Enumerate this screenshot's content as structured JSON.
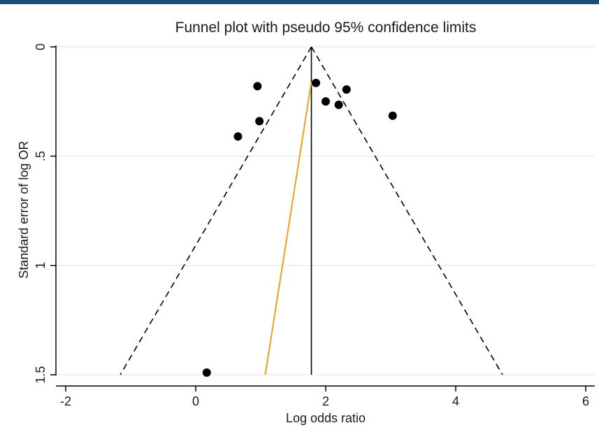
{
  "chart_data": {
    "type": "scatter",
    "title": "Funnel plot with pseudo 95% confidence limits",
    "xlabel": "Log odds ratio",
    "ylabel": "Standard error of log OR",
    "xlim": [
      -2,
      6
    ],
    "ylim": [
      0,
      1.5
    ],
    "y_reversed": true,
    "xticks": [
      -2,
      0,
      2,
      4,
      6
    ],
    "xtick_labels": [
      "-2",
      "0",
      "2",
      "4",
      "6"
    ],
    "yticks": [
      0,
      0.5,
      1,
      1.5
    ],
    "ytick_labels": [
      "0",
      ".5",
      "1",
      "1.5"
    ],
    "grid": "horizontal",
    "points": [
      {
        "x": 0.95,
        "y": 0.18
      },
      {
        "x": 1.85,
        "y": 0.165
      },
      {
        "x": 2.32,
        "y": 0.195
      },
      {
        "x": 2.0,
        "y": 0.25
      },
      {
        "x": 2.2,
        "y": 0.265
      },
      {
        "x": 3.03,
        "y": 0.315
      },
      {
        "x": 0.98,
        "y": 0.34
      },
      {
        "x": 0.65,
        "y": 0.41
      },
      {
        "x": 0.17,
        "y": 1.49
      }
    ],
    "pooled_estimate": 1.78,
    "funnel": {
      "apex": [
        1.78,
        0
      ],
      "bottom_left": [
        -1.16,
        1.5
      ],
      "bottom_right": [
        4.72,
        1.5
      ]
    },
    "trend_line": {
      "from": [
        1.07,
        1.5
      ],
      "to": [
        1.78,
        0.16
      ],
      "color": "#f39c20"
    },
    "colors": {
      "points": "#000000",
      "grid": "#d9e6ee",
      "axis": "#000000"
    }
  }
}
